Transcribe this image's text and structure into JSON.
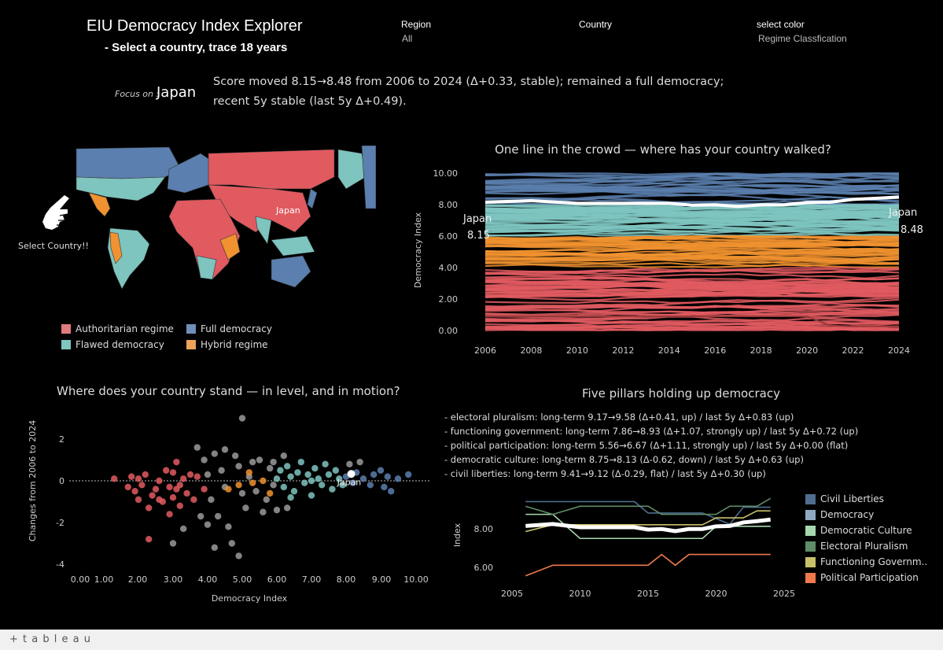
{
  "header": {
    "title": "EIU Democracy Index Explorer",
    "subtitle": "- Select a country, trace 18 years"
  },
  "filters": [
    {
      "label": "Region",
      "value": "All"
    },
    {
      "label": "Country",
      "value": ""
    },
    {
      "label": "select color",
      "value": "Regime Classfication"
    }
  ],
  "focus": {
    "prefix": "Focus on :",
    "country": "Japan",
    "line1": "Score moved 8.15→8.48 from 2006 to 2024 (Δ+0.33, stable); remained a full democracy;",
    "line2": "recent 5y stable (last 5y Δ+0.49)."
  },
  "map": {
    "hint": "Select Country!!",
    "hand_icon": "pointing-hand-icon",
    "selected_label": "Japan",
    "legend": [
      {
        "label": "Authoritarian regime",
        "color": "#e07b7e"
      },
      {
        "label": "Full democracy",
        "color": "#6f8fb6"
      },
      {
        "label": "Flawed democracy",
        "color": "#7fc5bf"
      },
      {
        "label": "Hybrid regime",
        "color": "#eea35a"
      }
    ]
  },
  "colors": {
    "Full democracy": "#5b7fae",
    "Flawed democracy": "#7ec4bf",
    "Hybrid regime": "#f0922f",
    "Authoritarian regime": "#e05a60",
    "highlight": "#ffffff",
    "muted": "#9a9a9a"
  },
  "chart_data": [
    {
      "type": "line",
      "title": "One line in the crowd — where has your country walked?",
      "ylabel": "Democracy Index",
      "xlabel": "",
      "x_ticks": [
        "2006",
        "2008",
        "2010",
        "2012",
        "2014",
        "2016",
        "2018",
        "2020",
        "2022",
        "2024"
      ],
      "y_ticks": [
        "10.00",
        "8.00",
        "6.00",
        "4.00",
        "2.00",
        "0.00"
      ],
      "ylim": [
        0,
        10
      ],
      "xlim": [
        2006,
        2024
      ],
      "crowd_bands": [
        {
          "regime": "Full democracy",
          "range": [
            8,
            10
          ]
        },
        {
          "regime": "Flawed democracy",
          "range": [
            6,
            8
          ]
        },
        {
          "regime": "Hybrid regime",
          "range": [
            4,
            6
          ]
        },
        {
          "regime": "Authoritarian regime",
          "range": [
            0,
            4
          ]
        }
      ],
      "highlight": {
        "name": "Japan",
        "start_label": "8.15",
        "end_label": "8.48",
        "x": [
          2006,
          2008,
          2010,
          2011,
          2012,
          2013,
          2014,
          2015,
          2016,
          2017,
          2018,
          2019,
          2020,
          2021,
          2022,
          2023,
          2024
        ],
        "y": [
          8.15,
          8.25,
          8.08,
          8.08,
          8.08,
          8.08,
          8.08,
          7.96,
          7.99,
          7.88,
          7.99,
          7.99,
          8.13,
          8.15,
          8.33,
          8.4,
          8.48
        ]
      }
    },
    {
      "type": "scatter",
      "title": "Where does your country stand — in level, and in motion?",
      "xlabel": "Democracy Index",
      "ylabel": "Changes from 2006 to 2024",
      "x_ticks": [
        "0.00",
        "1.00",
        "2.00",
        "3.00",
        "4.00",
        "5.00",
        "6.00",
        "7.00",
        "8.00",
        "9.00",
        "10.00"
      ],
      "y_ticks": [
        "2",
        "0",
        "-2",
        "-4"
      ],
      "xlim": [
        0,
        10
      ],
      "ylim": [
        -4.5,
        3.2
      ],
      "highlight": {
        "name": "Japan",
        "x": 8.15,
        "y": 0.33
      },
      "series": [
        {
          "regime": "Authoritarian regime",
          "points": [
            [
              1.3,
              0.1
            ],
            [
              1.7,
              -0.3
            ],
            [
              1.8,
              0.2
            ],
            [
              1.9,
              -0.5
            ],
            [
              2.0,
              0.1
            ],
            [
              2.0,
              -0.9
            ],
            [
              2.1,
              -0.2
            ],
            [
              2.2,
              0.3
            ],
            [
              2.3,
              -1.3
            ],
            [
              2.3,
              -2.8
            ],
            [
              2.4,
              -0.7
            ],
            [
              2.5,
              -0.4
            ],
            [
              2.6,
              0.0
            ],
            [
              2.7,
              -1.0
            ],
            [
              2.8,
              0.5
            ],
            [
              2.9,
              -0.3
            ],
            [
              2.9,
              -1.6
            ],
            [
              3.0,
              0.4
            ],
            [
              3.0,
              -0.8
            ],
            [
              3.1,
              0.9
            ],
            [
              3.2,
              -0.2
            ],
            [
              3.2,
              -1.2
            ],
            [
              3.3,
              0.1
            ],
            [
              3.4,
              -0.6
            ],
            [
              3.5,
              0.3
            ],
            [
              3.6,
              -0.9
            ],
            [
              3.7,
              0.2
            ],
            [
              3.9,
              -0.4
            ],
            [
              2.6,
              -0.9
            ],
            [
              3.1,
              -0.4
            ]
          ]
        },
        {
          "regime": "muted",
          "points": [
            [
              3.9,
              1.0
            ],
            [
              4.0,
              0.3
            ],
            [
              4.1,
              -0.9
            ],
            [
              4.2,
              1.3
            ],
            [
              4.3,
              -1.7
            ],
            [
              4.4,
              0.5
            ],
            [
              4.5,
              -0.3
            ],
            [
              4.6,
              -2.2
            ],
            [
              4.7,
              -3.0
            ],
            [
              4.8,
              1.2
            ],
            [
              4.9,
              0.7
            ],
            [
              5.0,
              -0.6
            ],
            [
              5.0,
              3.0
            ],
            [
              5.1,
              -1.3
            ],
            [
              5.2,
              0.2
            ],
            [
              5.4,
              -0.5
            ],
            [
              5.5,
              1.0
            ],
            [
              5.6,
              -1.5
            ],
            [
              5.8,
              0.6
            ],
            [
              5.9,
              -0.2
            ],
            [
              4.0,
              -2.1
            ],
            [
              3.7,
              1.6
            ],
            [
              4.5,
              1.5
            ],
            [
              4.2,
              -3.2
            ],
            [
              3.3,
              -2.3
            ],
            [
              3.0,
              -3.0
            ],
            [
              5.3,
              0.9
            ],
            [
              4.9,
              -3.6
            ],
            [
              5.7,
              -0.9
            ],
            [
              5.9,
              0.9
            ],
            [
              6.2,
              1.2
            ],
            [
              6.0,
              -1.4
            ],
            [
              6.3,
              -1.3
            ],
            [
              8.1,
              0.8
            ],
            [
              8.4,
              0.9
            ],
            [
              3.8,
              -1.7
            ]
          ]
        },
        {
          "regime": "Hybrid regime",
          "points": [
            [
              4.6,
              -0.4
            ],
            [
              4.9,
              -0.2
            ],
            [
              5.2,
              0.4
            ],
            [
              5.3,
              -0.1
            ],
            [
              5.6,
              0.0
            ],
            [
              5.8,
              -0.6
            ]
          ]
        },
        {
          "regime": "Flawed democracy",
          "points": [
            [
              6.0,
              0.1
            ],
            [
              6.1,
              0.5
            ],
            [
              6.2,
              -0.3
            ],
            [
              6.3,
              0.7
            ],
            [
              6.4,
              0.2
            ],
            [
              6.5,
              -0.5
            ],
            [
              6.6,
              0.4
            ],
            [
              6.7,
              0.9
            ],
            [
              6.8,
              -0.1
            ],
            [
              6.9,
              0.3
            ],
            [
              7.0,
              -0.7
            ],
            [
              7.1,
              0.6
            ],
            [
              7.2,
              0.1
            ],
            [
              7.3,
              -0.2
            ],
            [
              7.4,
              0.8
            ],
            [
              7.5,
              0.3
            ],
            [
              7.6,
              -0.4
            ],
            [
              7.7,
              0.5
            ],
            [
              7.8,
              0.1
            ],
            [
              7.9,
              -0.2
            ],
            [
              6.4,
              -0.8
            ],
            [
              7.0,
              0.0
            ]
          ]
        },
        {
          "regime": "Full democracy",
          "points": [
            [
              8.0,
              0.2
            ],
            [
              8.2,
              -0.1
            ],
            [
              8.3,
              0.4
            ],
            [
              8.5,
              0.1
            ],
            [
              8.7,
              -0.2
            ],
            [
              8.8,
              0.3
            ],
            [
              9.0,
              0.5
            ],
            [
              9.1,
              -0.3
            ],
            [
              9.2,
              0.2
            ],
            [
              9.3,
              -0.5
            ],
            [
              9.5,
              0.1
            ],
            [
              9.8,
              0.3
            ]
          ]
        }
      ]
    },
    {
      "type": "line",
      "title": "Five pillars holding up democracy",
      "ylabel": "Index",
      "x_ticks": [
        "2005",
        "2010",
        "2015",
        "2020",
        "2025"
      ],
      "y_ticks": [
        "8.00",
        "6.00"
      ],
      "xlim": [
        2005,
        2025
      ],
      "x": [
        2006,
        2008,
        2010,
        2011,
        2012,
        2013,
        2014,
        2015,
        2016,
        2017,
        2018,
        2019,
        2020,
        2021,
        2022,
        2023,
        2024
      ],
      "series": [
        {
          "name": "Civil Liberties",
          "color": "#4f6d8f",
          "values": [
            9.41,
            9.41,
            9.41,
            9.41,
            9.41,
            9.41,
            9.41,
            8.82,
            8.82,
            8.82,
            8.82,
            8.82,
            8.53,
            8.24,
            9.12,
            9.12,
            9.12
          ]
        },
        {
          "name": "Democracy",
          "color": "#ffffff",
          "values": [
            8.15,
            8.25,
            8.08,
            8.08,
            8.08,
            8.08,
            8.08,
            7.96,
            7.99,
            7.88,
            7.99,
            7.99,
            8.13,
            8.15,
            8.33,
            8.4,
            8.48
          ]
        },
        {
          "name": "Democratic Culture",
          "color": "#a6d8b0",
          "values": [
            8.75,
            8.75,
            7.5,
            7.5,
            7.5,
            7.5,
            7.5,
            7.5,
            7.5,
            7.5,
            7.5,
            7.5,
            8.13,
            8.13,
            8.13,
            8.13,
            8.13
          ]
        },
        {
          "name": "Electoral Pluralism",
          "color": "#5f8d68",
          "values": [
            9.17,
            8.75,
            9.17,
            9.17,
            9.17,
            9.17,
            9.17,
            9.17,
            8.75,
            8.75,
            8.75,
            8.75,
            8.75,
            9.17,
            9.17,
            9.17,
            9.58
          ]
        },
        {
          "name": "Functioning Governm..",
          "color": "#c9c06a",
          "values": [
            7.86,
            8.21,
            8.21,
            8.21,
            8.21,
            8.21,
            8.21,
            8.21,
            8.21,
            8.21,
            8.21,
            8.21,
            8.57,
            8.57,
            8.57,
            8.93,
            8.93
          ]
        },
        {
          "name": "Political Participation",
          "color": "#ee7a4c",
          "values": [
            5.56,
            6.11,
            6.11,
            6.11,
            6.11,
            6.11,
            6.11,
            6.11,
            6.67,
            6.11,
            6.67,
            6.67,
            6.67,
            6.67,
            6.67,
            6.67,
            6.67
          ]
        }
      ],
      "summaries": [
        "- electoral pluralism: long-term 9.17→9.58 (Δ+0.41, up) / last 5y Δ+0.83 (up)",
        "- functioning government: long-term 7.86→8.93 (Δ+1.07, strongly up) / last 5y Δ+0.72 (up)",
        "- political participation: long-term 5.56→6.67 (Δ+1.11, strongly up) / last 5y Δ+0.00 (flat)",
        "- democratic culture: long-term 8.75→8.13 (Δ-0.62, down) / last 5y Δ+0.63 (up)",
        "- civil liberties: long-term 9.41→9.12 (Δ-0.29, flat) / last 5y Δ+0.30 (up)"
      ]
    }
  ],
  "footer": {
    "logo": "+ t a b l e a u"
  }
}
